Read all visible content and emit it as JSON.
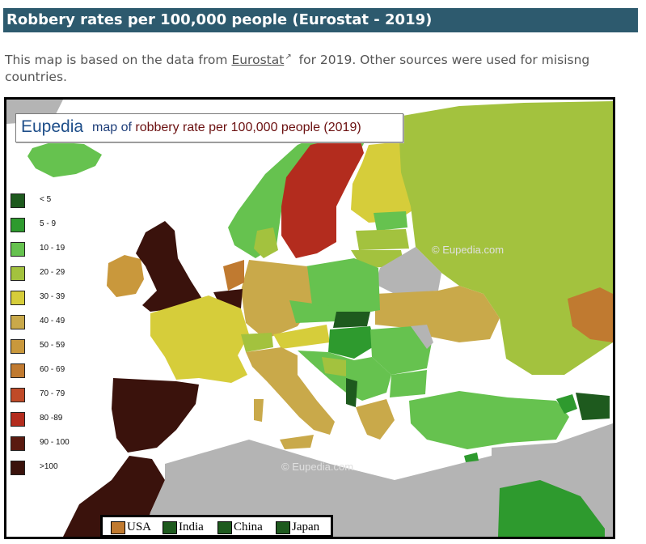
{
  "header": {
    "title": "Robbery rates per 100,000 people (Eurostat - 2019)"
  },
  "intro": {
    "before_link": "This map is based on the data from ",
    "link_text": "Eurostat",
    "external_icon": "external-link-icon",
    "after_link": " for 2019. Other sources were used for misisng countries."
  },
  "map": {
    "title_brand": "Eupedia",
    "title_part1": "map of ",
    "title_part2": "robbery rate per 100,000 people (2019)",
    "watermark_1": "© Eupedia.com",
    "watermark_2": "© Eupedia.com",
    "legend": [
      {
        "label": "< 5",
        "color": "#1e5a1e"
      },
      {
        "label": "5 - 9",
        "color": "#2e9a2e"
      },
      {
        "label": "10 - 19",
        "color": "#66c24f"
      },
      {
        "label": "20 - 29",
        "color": "#a3c23e"
      },
      {
        "label": "30 - 39",
        "color": "#d6cd3a"
      },
      {
        "label": "40 - 49",
        "color": "#c9a94a"
      },
      {
        "label": "50 - 59",
        "color": "#c9983c"
      },
      {
        "label": "60 - 69",
        "color": "#c07a30"
      },
      {
        "label": "70 - 79",
        "color": "#c04a28"
      },
      {
        "label": "80 -89",
        "color": "#b32c1e"
      },
      {
        "label": "90 - 100",
        "color": "#5a1a10"
      },
      {
        "label": ">100",
        "color": "#3a120c"
      }
    ],
    "reference_legend": [
      {
        "label": "USA",
        "color": "#c07a30"
      },
      {
        "label": "India",
        "color": "#1e5a1e"
      },
      {
        "label": "China",
        "color": "#1e5a1e"
      },
      {
        "label": "Japan",
        "color": "#1e5a1e"
      }
    ],
    "colors": {
      "sea": "#ffffff",
      "land_nodata": "#b4b4b4",
      "frame": "#000000"
    }
  }
}
